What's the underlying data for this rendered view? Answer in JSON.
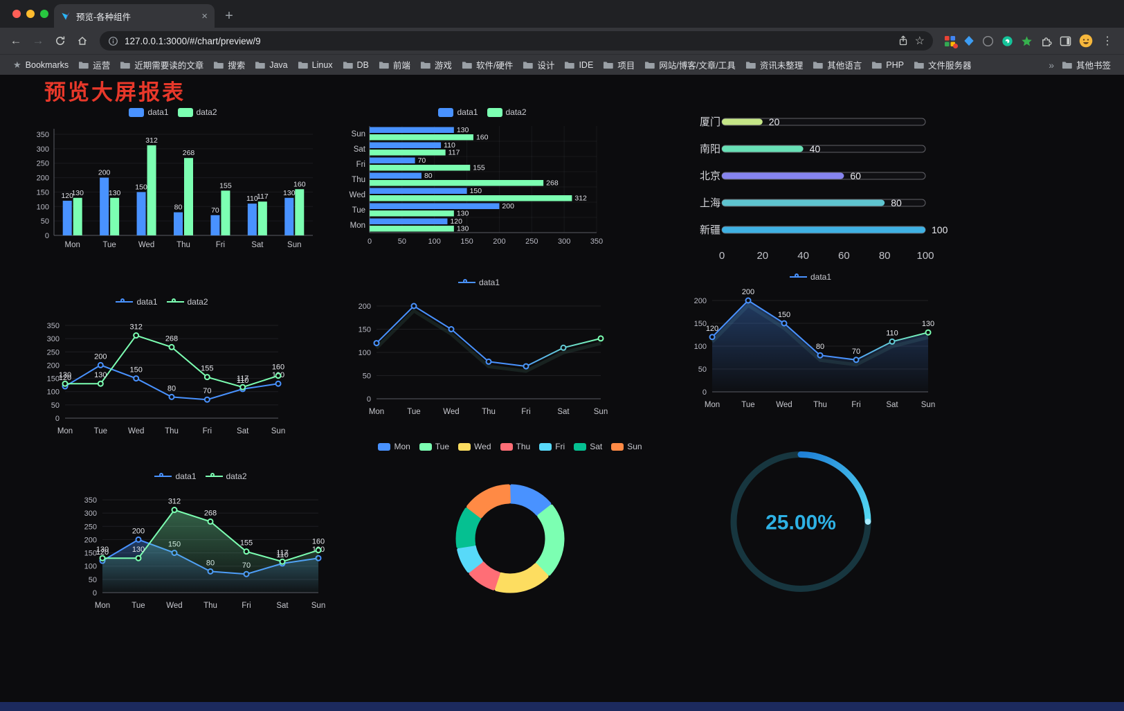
{
  "browser": {
    "tab_title": "预览-各种组件",
    "url": "127.0.0.1:3000/#/chart/preview/9",
    "bookmarks_bar": {
      "label": "Bookmarks",
      "folders": [
        "运营",
        "近期需要读的文章",
        "搜索",
        "Java",
        "Linux",
        "DB",
        "前端",
        "游戏",
        "软件/硬件",
        "设计",
        "IDE",
        "项目",
        "网站/博客/文章/工具",
        "资讯未整理",
        "其他语言",
        "PHP",
        "文件服务器"
      ],
      "overflow": "»",
      "other": "其他书签"
    }
  },
  "page": {
    "title": "预览大屏报表",
    "title_color": "#e8382a"
  },
  "chart_data": [
    {
      "id": "bar-vertical",
      "type": "bar",
      "categories": [
        "Mon",
        "Tue",
        "Wed",
        "Thu",
        "Fri",
        "Sat",
        "Sun"
      ],
      "series": [
        {
          "name": "data1",
          "color": "#4992ff",
          "values": [
            120,
            200,
            150,
            80,
            70,
            110,
            130
          ]
        },
        {
          "name": "data2",
          "color": "#7cffb2",
          "values": [
            130,
            130,
            312,
            268,
            155,
            117,
            160
          ]
        }
      ],
      "ylim": [
        0,
        350
      ],
      "ystep": 50,
      "show_labels": true,
      "grid": true,
      "legend_position": "top"
    },
    {
      "id": "bar-horizontal",
      "type": "hbar",
      "categories": [
        "Mon",
        "Tue",
        "Wed",
        "Thu",
        "Fri",
        "Sat",
        "Sun"
      ],
      "series": [
        {
          "name": "data1",
          "color": "#4992ff",
          "values": [
            120,
            200,
            150,
            80,
            70,
            110,
            130
          ]
        },
        {
          "name": "data2",
          "color": "#7cffb2",
          "values": [
            130,
            130,
            312,
            268,
            155,
            117,
            160
          ]
        }
      ],
      "xlim": [
        0,
        350
      ],
      "xstep": 50,
      "show_labels": true,
      "legend_position": "top"
    },
    {
      "id": "progress",
      "type": "progress",
      "max": 100,
      "items": [
        {
          "label": "厦门",
          "value": 20,
          "color": "#c5e687"
        },
        {
          "label": "南阳",
          "value": 40,
          "color": "#68e0b5"
        },
        {
          "label": "北京",
          "value": 60,
          "color": "#8684ee"
        },
        {
          "label": "上海",
          "value": 80,
          "color": "#5ec4cf"
        },
        {
          "label": "新疆",
          "value": 100,
          "color": "#3fb1e3"
        }
      ],
      "axis": [
        0,
        20,
        40,
        60,
        80,
        100
      ]
    },
    {
      "id": "line-both",
      "type": "line",
      "categories": [
        "Mon",
        "Tue",
        "Wed",
        "Thu",
        "Fri",
        "Sat",
        "Sun"
      ],
      "series": [
        {
          "name": "data1",
          "color": "#4992ff",
          "values": [
            120,
            200,
            150,
            80,
            70,
            110,
            130
          ]
        },
        {
          "name": "data2",
          "color": "#7cffb2",
          "values": [
            130,
            130,
            312,
            268,
            155,
            117,
            160
          ]
        }
      ],
      "ylim": [
        0,
        350
      ],
      "ystep": 50,
      "show_labels": true,
      "area": false,
      "legend_position": "top"
    },
    {
      "id": "line-single",
      "type": "line",
      "categories": [
        "Mon",
        "Tue",
        "Wed",
        "Thu",
        "Fri",
        "Sat",
        "Sun"
      ],
      "series": [
        {
          "name": "data1",
          "color": "#4992ff",
          "gradient": true,
          "values": [
            120,
            200,
            150,
            80,
            70,
            110,
            130
          ]
        }
      ],
      "ylim": [
        0,
        200
      ],
      "ystep": 50,
      "show_labels": false,
      "area": false,
      "shadow": true,
      "legend_position": "top"
    },
    {
      "id": "line-area-single",
      "type": "line",
      "categories": [
        "Mon",
        "Tue",
        "Wed",
        "Thu",
        "Fri",
        "Sat",
        "Sun"
      ],
      "series": [
        {
          "name": "data1",
          "color": "#4992ff",
          "gradient": true,
          "values": [
            120,
            200,
            150,
            80,
            70,
            110,
            130
          ]
        }
      ],
      "ylim": [
        0,
        200
      ],
      "ystep": 50,
      "show_labels": true,
      "area": true,
      "shadow": true,
      "legend_position": "top"
    },
    {
      "id": "line-area-both",
      "type": "line",
      "categories": [
        "Mon",
        "Tue",
        "Wed",
        "Thu",
        "Fri",
        "Sat",
        "Sun"
      ],
      "series": [
        {
          "name": "data1",
          "color": "#4992ff",
          "values": [
            120,
            200,
            150,
            80,
            70,
            110,
            130
          ]
        },
        {
          "name": "data2",
          "color": "#7cffb2",
          "values": [
            130,
            130,
            312,
            268,
            155,
            117,
            160
          ]
        }
      ],
      "ylim": [
        0,
        350
      ],
      "ystep": 50,
      "show_labels": true,
      "area": true,
      "legend_position": "top"
    },
    {
      "id": "donut",
      "type": "donut",
      "categories": [
        "Mon",
        "Tue",
        "Wed",
        "Thu",
        "Fri",
        "Sat",
        "Sun"
      ],
      "values": [
        120,
        200,
        150,
        80,
        70,
        110,
        130
      ],
      "colors": [
        "#4992ff",
        "#7cffb2",
        "#fddd60",
        "#ff6e76",
        "#58d9f9",
        "#05c091",
        "#ff8a45"
      ],
      "legend_position": "top"
    },
    {
      "id": "gauge",
      "type": "gauge",
      "label": "25.00%",
      "percent": 25,
      "text_color": "#2eb1e4",
      "track_color": "#17363f",
      "arc_colors": [
        "#1f7fd6",
        "#55d9f2"
      ]
    }
  ]
}
